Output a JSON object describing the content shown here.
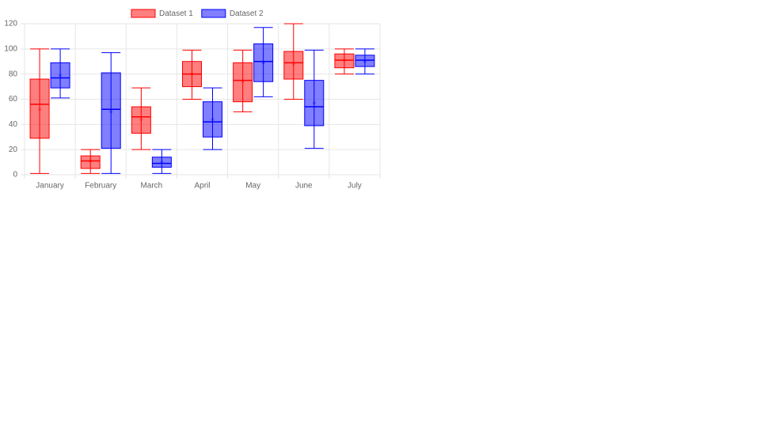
{
  "chart_data": {
    "type": "boxplot",
    "categories": [
      "January",
      "February",
      "March",
      "April",
      "May",
      "June",
      "July"
    ],
    "series": [
      {
        "name": "Dataset 1",
        "color": "#ff0000",
        "values": [
          {
            "min": 1,
            "q1": 29,
            "median": 56,
            "q3": 76,
            "max": 100,
            "mean": 52
          },
          {
            "min": 1,
            "q1": 5,
            "median": 11,
            "q3": 15,
            "max": 20,
            "mean": 11
          },
          {
            "min": 20,
            "q1": 33,
            "median": 46,
            "q3": 54,
            "max": 69,
            "mean": 44
          },
          {
            "min": 60,
            "q1": 70,
            "median": 80,
            "q3": 90,
            "max": 99,
            "mean": 80
          },
          {
            "min": 50,
            "q1": 58,
            "median": 75,
            "q3": 89,
            "max": 99,
            "mean": 74
          },
          {
            "min": 60,
            "q1": 76,
            "median": 89,
            "q3": 98,
            "max": 120,
            "mean": 88
          },
          {
            "min": 80,
            "q1": 85,
            "median": 91,
            "q3": 96,
            "max": 100,
            "mean": 91
          }
        ]
      },
      {
        "name": "Dataset 2",
        "color": "#0000ff",
        "values": [
          {
            "min": 61,
            "q1": 69,
            "median": 77,
            "q3": 89,
            "max": 100,
            "mean": 79
          },
          {
            "min": 1,
            "q1": 21,
            "median": 52,
            "q3": 81,
            "max": 97,
            "mean": 50
          },
          {
            "min": 1,
            "q1": 6,
            "median": 9,
            "q3": 14,
            "max": 20,
            "mean": 10
          },
          {
            "min": 20,
            "q1": 30,
            "median": 42,
            "q3": 58,
            "max": 69,
            "mean": 44
          },
          {
            "min": 62,
            "q1": 74,
            "median": 90,
            "q3": 104,
            "max": 117,
            "mean": 89
          },
          {
            "min": 21,
            "q1": 39,
            "median": 54,
            "q3": 75,
            "max": 99,
            "mean": 57
          },
          {
            "min": 80,
            "q1": 86,
            "median": 91,
            "q3": 95,
            "max": 100,
            "mean": 90
          }
        ]
      }
    ],
    "ylim": [
      0,
      120
    ],
    "yticks": [
      0,
      20,
      40,
      60,
      80,
      100,
      120
    ],
    "grid": true,
    "legend": "top"
  }
}
